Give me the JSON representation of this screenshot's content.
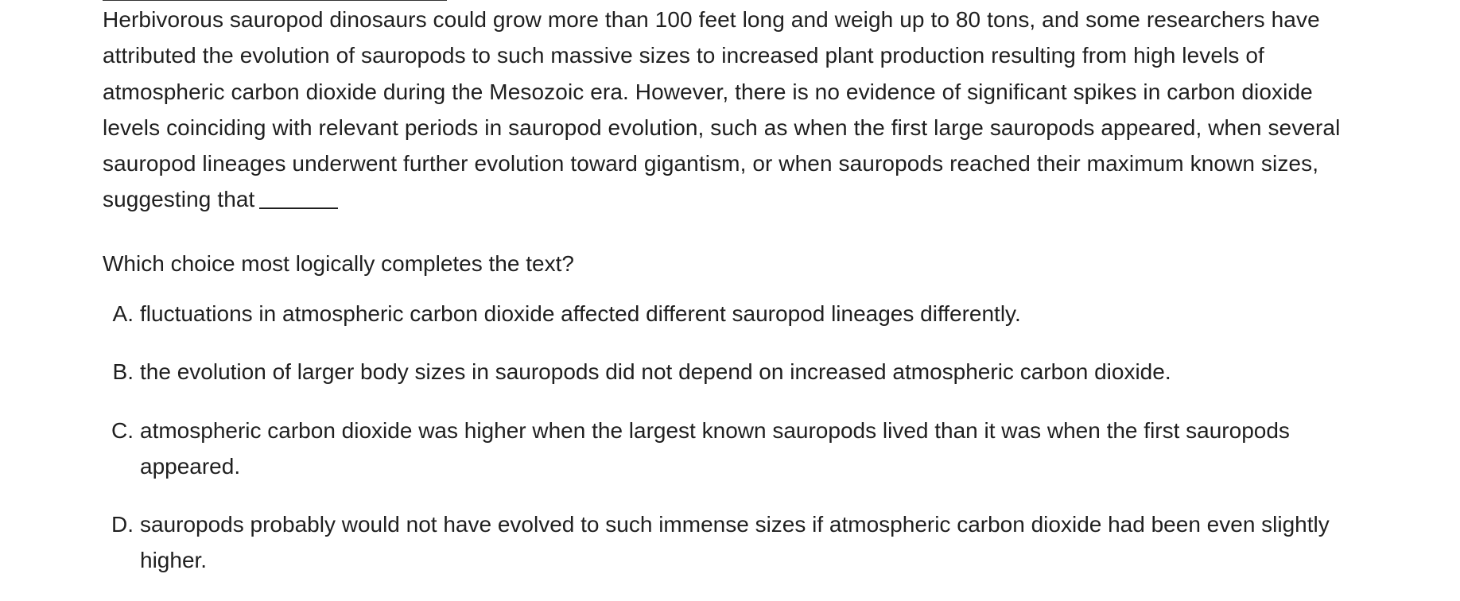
{
  "passage": {
    "text": "Herbivorous sauropod dinosaurs could grow more than 100 feet long and weigh up to 80 tons, and some researchers have attributed the evolution of sauropods to such massive sizes to increased plant production resulting from high levels of atmospheric carbon dioxide during the Mesozoic era. However, there is no evidence of significant spikes in carbon dioxide levels coinciding with relevant periods in sauropod evolution, such as when the first large sauropods appeared, when several sauropod lineages underwent further evolution toward gigantism, or when sauropods reached their maximum known sizes, suggesting that"
  },
  "question": {
    "prompt": "Which choice most logically completes the text?"
  },
  "choices": [
    {
      "letter": "A.",
      "text": "fluctuations in atmospheric carbon dioxide affected different sauropod lineages differently."
    },
    {
      "letter": "B.",
      "text": "the evolution of larger body sizes in sauropods did not depend on increased atmospheric carbon dioxide."
    },
    {
      "letter": "C.",
      "text": "atmospheric carbon dioxide was higher when the largest known sauropods lived than it was when the first sauropods appeared."
    },
    {
      "letter": "D.",
      "text": "sauropods probably would not have evolved to such immense sizes if atmospheric carbon dioxide had been even slightly higher."
    }
  ]
}
